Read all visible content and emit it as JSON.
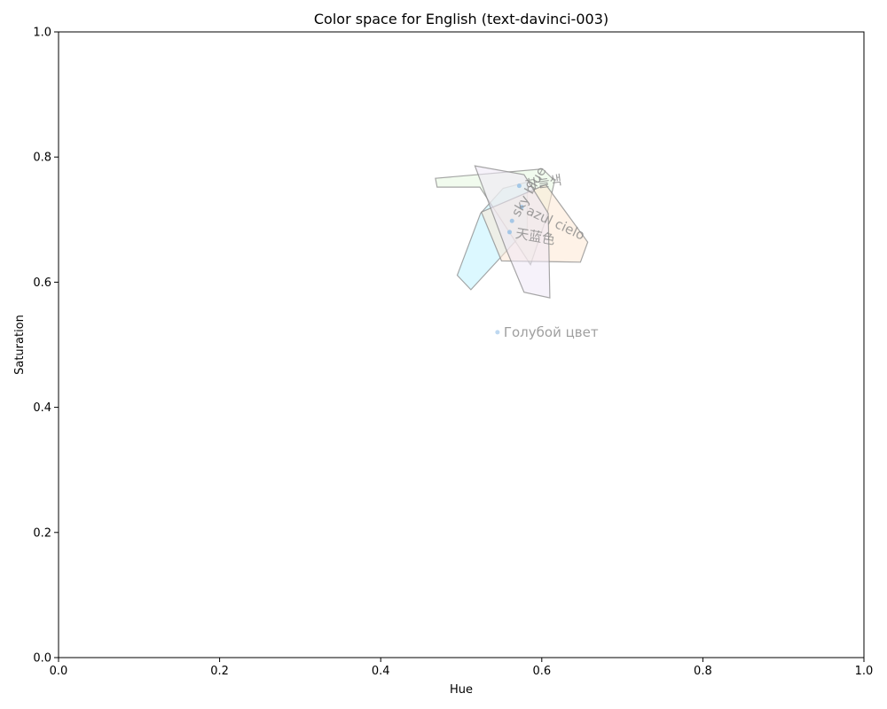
{
  "chart_data": {
    "type": "scatter",
    "title": "Color space for English (text-davinci-003)",
    "xlabel": "Hue",
    "ylabel": "Saturation",
    "xlim": [
      0.0,
      1.0
    ],
    "ylim": [
      0.0,
      1.0
    ],
    "xticks": [
      "0.0",
      "0.2",
      "0.4",
      "0.6",
      "0.8",
      "1.0"
    ],
    "yticks": [
      "0.0",
      "0.2",
      "0.4",
      "0.6",
      "0.8",
      "1.0"
    ],
    "grid": false,
    "legend": "none",
    "series": [
      {
        "name": "sky blue",
        "color": "#bff3ff",
        "point": [
          0.563,
          0.698
        ],
        "label_rotation": -60,
        "hull": [
          [
            0.495,
            0.611
          ],
          [
            0.512,
            0.588
          ],
          [
            0.582,
            0.686
          ],
          [
            0.582,
            0.76
          ],
          [
            0.552,
            0.75
          ],
          [
            0.524,
            0.71
          ]
        ]
      },
      {
        "name": "하늘색",
        "color": "#e6f7e0",
        "point": [
          0.572,
          0.754
        ],
        "label_rotation": -8,
        "hull": [
          [
            0.468,
            0.766
          ],
          [
            0.601,
            0.781
          ],
          [
            0.616,
            0.762
          ],
          [
            0.605,
            0.7
          ],
          [
            0.586,
            0.628
          ],
          [
            0.523,
            0.752
          ],
          [
            0.47,
            0.752
          ]
        ]
      },
      {
        "name": "azul cielo",
        "color": "#fde8d4",
        "point": [
          0.575,
          0.72
        ],
        "label_rotation": 25,
        "hull": [
          [
            0.525,
            0.712
          ],
          [
            0.605,
            0.756
          ],
          [
            0.657,
            0.664
          ],
          [
            0.648,
            0.632
          ],
          [
            0.55,
            0.634
          ]
        ]
      },
      {
        "name": "天蓝色",
        "color": "#efe8f6",
        "point": [
          0.56,
          0.68
        ],
        "label_rotation": 10,
        "hull": [
          [
            0.517,
            0.786
          ],
          [
            0.578,
            0.772
          ],
          [
            0.608,
            0.71
          ],
          [
            0.61,
            0.575
          ],
          [
            0.578,
            0.584
          ],
          [
            0.555,
            0.655
          ]
        ]
      },
      {
        "name": "Голубой цвет",
        "color": "#b7d4ee",
        "point": [
          0.545,
          0.52
        ],
        "label_rotation": 0,
        "hull": []
      }
    ]
  }
}
